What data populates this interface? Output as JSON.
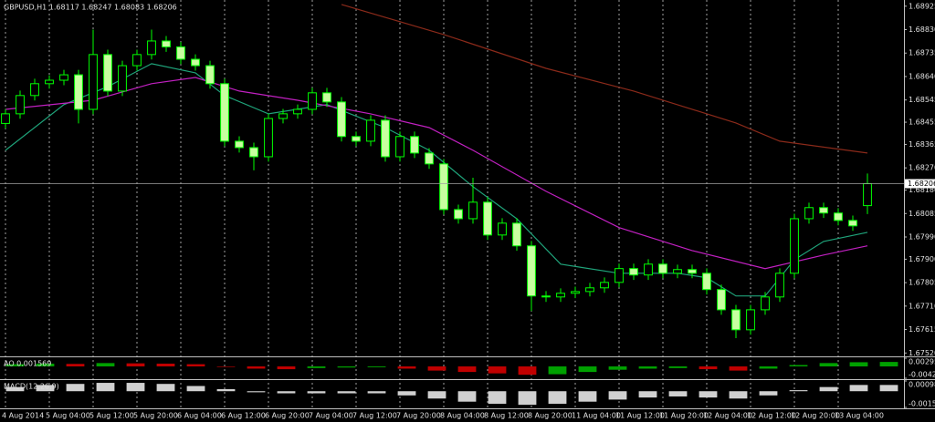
{
  "chart_data": {
    "type": "candlestick",
    "title": "GBPUSD,H1 1.68117 1.68247 1.68083 1.68206",
    "open": [
      1.6845,
      1.68489,
      1.68563,
      1.68611,
      1.68625,
      1.68647,
      1.68507,
      1.68729,
      1.68581,
      1.68684,
      1.68729,
      1.68784,
      1.6876,
      1.6871,
      1.68684,
      1.68611,
      1.68378,
      1.68352,
      1.68315,
      1.6847,
      1.68489,
      1.68507,
      1.68574,
      1.68537,
      1.68397,
      1.68378,
      1.68463,
      1.68315,
      1.68397,
      1.6833,
      1.68286,
      1.68101,
      1.68064,
      1.68131,
      1.67998,
      1.68046,
      1.67954,
      1.67751,
      1.67747,
      1.67762,
      1.67769,
      1.67784,
      1.67806,
      1.67862,
      1.67836,
      1.6788,
      1.67843,
      1.67858,
      1.67843,
      1.67777,
      1.67695,
      1.67614,
      1.67695,
      1.67747,
      1.67843,
      1.68064,
      1.68109,
      1.68087,
      1.68057,
      1.68117
    ],
    "high": [
      1.68509,
      1.68583,
      1.68631,
      1.68645,
      1.68667,
      1.68667,
      1.6883,
      1.68749,
      1.68704,
      1.68749,
      1.6883,
      1.68804,
      1.6878,
      1.6873,
      1.68704,
      1.68631,
      1.68398,
      1.68372,
      1.6849,
      1.68509,
      1.68527,
      1.68594,
      1.68594,
      1.68557,
      1.68417,
      1.68483,
      1.68483,
      1.68417,
      1.68417,
      1.6835,
      1.68306,
      1.68121,
      1.6823,
      1.68151,
      1.68066,
      1.68066,
      1.67974,
      1.67771,
      1.67782,
      1.67789,
      1.67804,
      1.67826,
      1.67882,
      1.67882,
      1.679,
      1.679,
      1.67878,
      1.67878,
      1.67863,
      1.67797,
      1.67715,
      1.67715,
      1.67767,
      1.67863,
      1.68084,
      1.68129,
      1.68129,
      1.68107,
      1.68077,
      1.68247
    ],
    "low": [
      1.6843,
      1.68469,
      1.68543,
      1.68591,
      1.68605,
      1.6845,
      1.68487,
      1.68561,
      1.68561,
      1.68664,
      1.68709,
      1.6874,
      1.6869,
      1.68664,
      1.68591,
      1.68358,
      1.68332,
      1.6826,
      1.68295,
      1.6845,
      1.68469,
      1.68487,
      1.68517,
      1.68377,
      1.68358,
      1.68358,
      1.68295,
      1.68295,
      1.6831,
      1.68266,
      1.68081,
      1.68044,
      1.68044,
      1.67978,
      1.67978,
      1.67934,
      1.6769,
      1.67727,
      1.67727,
      1.67742,
      1.67749,
      1.67764,
      1.67786,
      1.67816,
      1.67816,
      1.67823,
      1.67823,
      1.67823,
      1.67757,
      1.67675,
      1.6758,
      1.67594,
      1.67675,
      1.67727,
      1.67823,
      1.68044,
      1.68067,
      1.68037,
      1.68015,
      1.68083
    ],
    "close": [
      1.68489,
      1.68563,
      1.68611,
      1.68625,
      1.68647,
      1.68507,
      1.68729,
      1.68581,
      1.68684,
      1.68729,
      1.68784,
      1.6876,
      1.6871,
      1.68684,
      1.68611,
      1.68378,
      1.68352,
      1.68315,
      1.6847,
      1.68489,
      1.68507,
      1.68574,
      1.68537,
      1.68397,
      1.68378,
      1.68463,
      1.68315,
      1.68397,
      1.6833,
      1.68286,
      1.68101,
      1.68064,
      1.68131,
      1.67998,
      1.68046,
      1.67954,
      1.67751,
      1.67747,
      1.67762,
      1.67769,
      1.67784,
      1.67806,
      1.67862,
      1.67836,
      1.6788,
      1.67843,
      1.67858,
      1.67843,
      1.67777,
      1.67695,
      1.67614,
      1.67695,
      1.67747,
      1.67843,
      1.68064,
      1.68109,
      1.68087,
      1.68057,
      1.68035,
      1.68206
    ],
    "candle_color": "#00ff00",
    "body_color": "#c8ffa0",
    "grid": true,
    "xlim": [
      -0.375,
      61.5
    ],
    "xticks": [
      {
        "value": 0,
        "label": "4 Aug 2014"
      },
      {
        "value": 3,
        "label": "5 Aug 04:00"
      },
      {
        "value": 6,
        "label": "5 Aug 12:00"
      },
      {
        "value": 9,
        "label": "5 Aug 20:00"
      },
      {
        "value": 12,
        "label": "6 Aug 04:00"
      },
      {
        "value": 15,
        "label": "6 Aug 12:00"
      },
      {
        "value": 18,
        "label": "6 Aug 20:00"
      },
      {
        "value": 21,
        "label": "7 Aug 04:00"
      },
      {
        "value": 24,
        "label": "7 Aug 12:00"
      },
      {
        "value": 27,
        "label": "7 Aug 20:00"
      },
      {
        "value": 30,
        "label": "8 Aug 04:00"
      },
      {
        "value": 33,
        "label": "8 Aug 12:00"
      },
      {
        "value": 36,
        "label": "8 Aug 20:00"
      },
      {
        "value": 39,
        "label": "11 Aug 04:00"
      },
      {
        "value": 42,
        "label": "11 Aug 12:00"
      },
      {
        "value": 45,
        "label": "11 Aug 20:00"
      },
      {
        "value": 48,
        "label": "12 Aug 04:00"
      },
      {
        "value": 51,
        "label": "12 Aug 12:00"
      },
      {
        "value": 54,
        "label": "12 Aug 20:00"
      },
      {
        "value": 57,
        "label": "13 Aug 04:00"
      }
    ],
    "ylim": [
      1.6751,
      1.6895
    ],
    "yticks": [
      1.68925,
      {
        "value": 1.6883,
        "label": "1.68830"
      },
      1.68735,
      {
        "value": 1.6864,
        "label": "1.68640"
      },
      1.68545,
      1.68455,
      1.68365,
      {
        "value": 1.6827,
        "label": "1.68270"
      },
      {
        "value": 1.6818,
        "label": "1.68180"
      },
      1.68085,
      {
        "value": 1.6799,
        "label": "1.67990"
      },
      {
        "value": 1.679,
        "label": "1.67900"
      },
      1.67805,
      {
        "value": 1.6771,
        "label": "1.67710"
      },
      1.67615,
      {
        "value": 1.6752,
        "label": "1.67520"
      }
    ],
    "lines": [
      {
        "color": "#1fa37a",
        "x": [
          0,
          4,
          7,
          10,
          13,
          15,
          18,
          22,
          26,
          29,
          32,
          35,
          38,
          42,
          46,
          48,
          50,
          52,
          54,
          56,
          59
        ],
        "values": [
          1.68341,
          1.68526,
          1.68599,
          1.68692,
          1.68655,
          1.68563,
          1.68489,
          1.68526,
          1.68433,
          1.68341,
          1.68194,
          1.68064,
          1.6788,
          1.67843,
          1.67843,
          1.67825,
          1.67751,
          1.67751,
          1.67898,
          1.67972,
          1.68009
        ]
      },
      {
        "color": "#c020c0",
        "x": [
          0,
          6,
          10,
          13,
          16,
          20,
          25,
          29,
          32,
          37,
          42,
          47,
          52,
          56,
          59
        ],
        "values": [
          1.68507,
          1.68544,
          1.68611,
          1.68636,
          1.68581,
          1.68544,
          1.68489,
          1.68433,
          1.68341,
          1.68175,
          1.68028,
          1.67935,
          1.67862,
          1.67917,
          1.67954
        ]
      },
      {
        "color": "#8b2a1a",
        "x": [
          23,
          30,
          37,
          43,
          50,
          53,
          59
        ],
        "values": [
          1.68932,
          1.6881,
          1.68673,
          1.68581,
          1.68452,
          1.68378,
          1.6833
        ]
      }
    ],
    "indicators": [
      {
        "title": "AO 0.001569",
        "ylim": [
          -0.00425,
          0.00295
        ],
        "yticks": [
          0.00295,
          -0.00425
        ],
        "up_color": "#00a000",
        "down_color": "#c00000",
        "values": [
          0.0008,
          0.001,
          0.0009,
          0.0012,
          0.0011,
          0.001,
          0.0008,
          -0.0002,
          -0.0008,
          -0.001,
          -0.0006,
          -0.0004,
          -0.0003,
          -0.0008,
          -0.0015,
          -0.002,
          -0.0025,
          -0.003,
          -0.0028,
          -0.002,
          -0.0012,
          -0.0008,
          -0.0006,
          -0.001,
          -0.0015,
          -0.0008,
          0.0005,
          0.0012,
          0.0015,
          0.0016
        ]
      },
      {
        "title": "MACD(12,26,9)",
        "ylim": [
          -0.00155,
          0.00098
        ],
        "yticks": [
          0.00098,
          -0.00155
        ],
        "up_color": "#d0d0d0",
        "down_color": "#d0d0d0",
        "values": [
          0.0004,
          0.0006,
          0.0007,
          0.0008,
          0.0008,
          0.0007,
          0.0005,
          0.0002,
          -0.0001,
          -0.0002,
          -0.0002,
          -0.0002,
          -0.0002,
          -0.0004,
          -0.0007,
          -0.001,
          -0.0012,
          -0.0013,
          -0.0012,
          -0.001,
          -0.0008,
          -0.0006,
          -0.0005,
          -0.0006,
          -0.0007,
          -0.0004,
          0.0001,
          0.0004,
          0.0006,
          0.0006
        ]
      }
    ]
  }
}
